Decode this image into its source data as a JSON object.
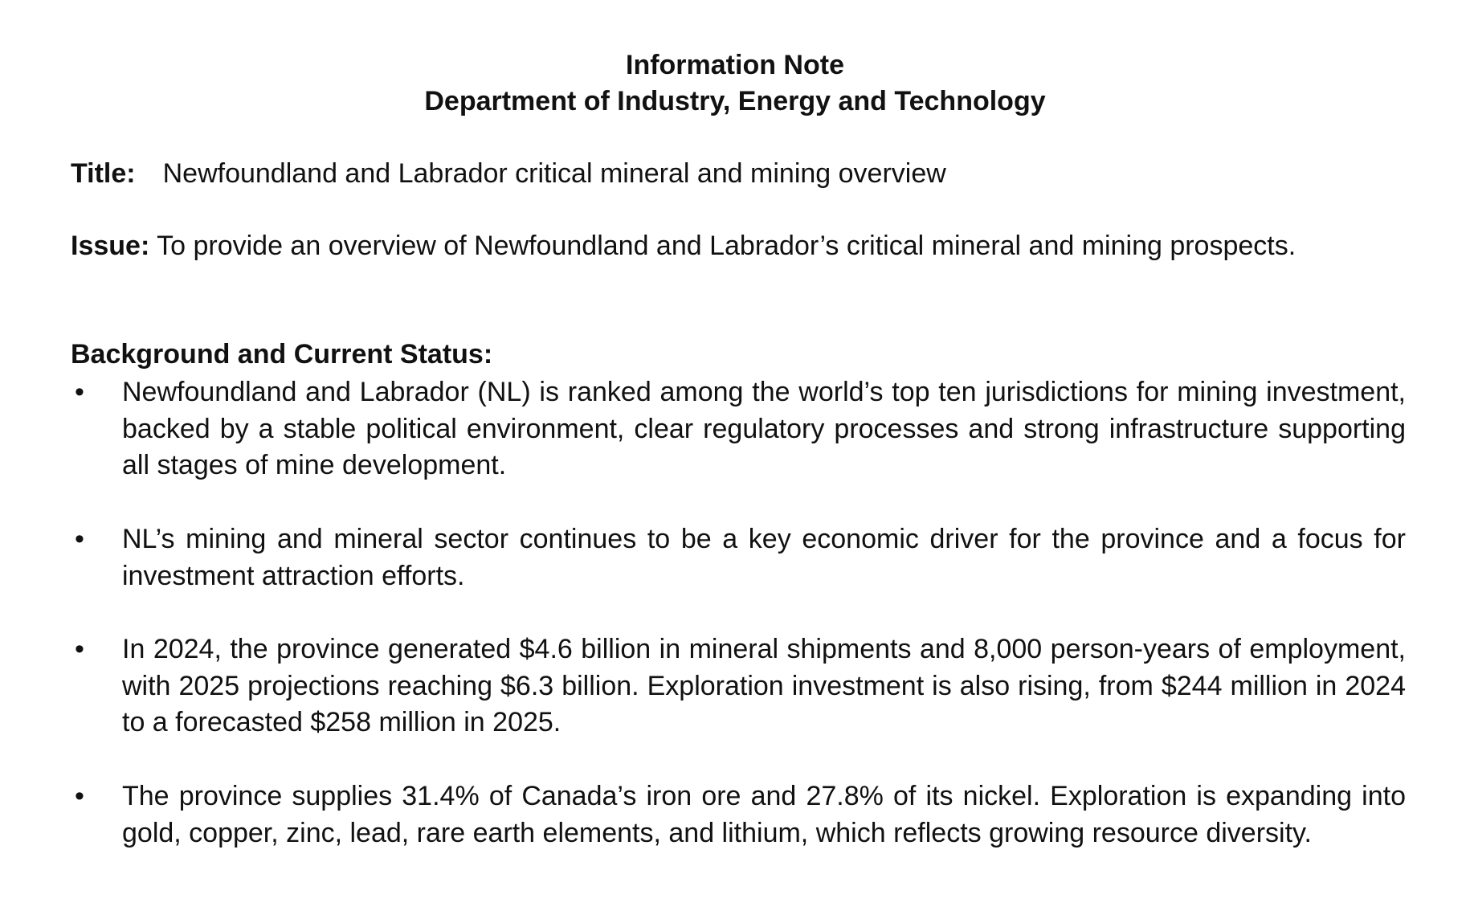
{
  "header": {
    "note_type": "Information Note",
    "department": "Department of Industry, Energy and Technology"
  },
  "title": {
    "label": "Title:",
    "value": "Newfoundland and Labrador critical mineral and mining overview"
  },
  "issue": {
    "label": "Issue:",
    "value": "To provide an overview of Newfoundland and Labrador’s critical mineral and mining prospects."
  },
  "background": {
    "heading": "Background and Current Status:",
    "bullet_symbol": "•",
    "items": [
      "Newfoundland and Labrador (NL) is ranked among the world’s top ten jurisdictions for mining investment, backed by a stable political environment, clear regulatory processes and strong infrastructure supporting all stages of mine development.",
      "NL’s mining and mineral sector continues to be a key economic driver for the province and a focus for investment attraction efforts.",
      "In 2024, the province generated $4.6 billion in mineral shipments and 8,000 person-years of employment, with 2025 projections reaching $6.3 billion. Exploration investment is also rising, from $244 million in 2024 to a forecasted $258 million in 2025.",
      "The province supplies 31.4% of Canada’s iron ore and 27.8% of its nickel. Exploration is expanding into gold, copper, zinc, lead, rare earth elements, and lithium, which reflects growing resource diversity."
    ]
  }
}
